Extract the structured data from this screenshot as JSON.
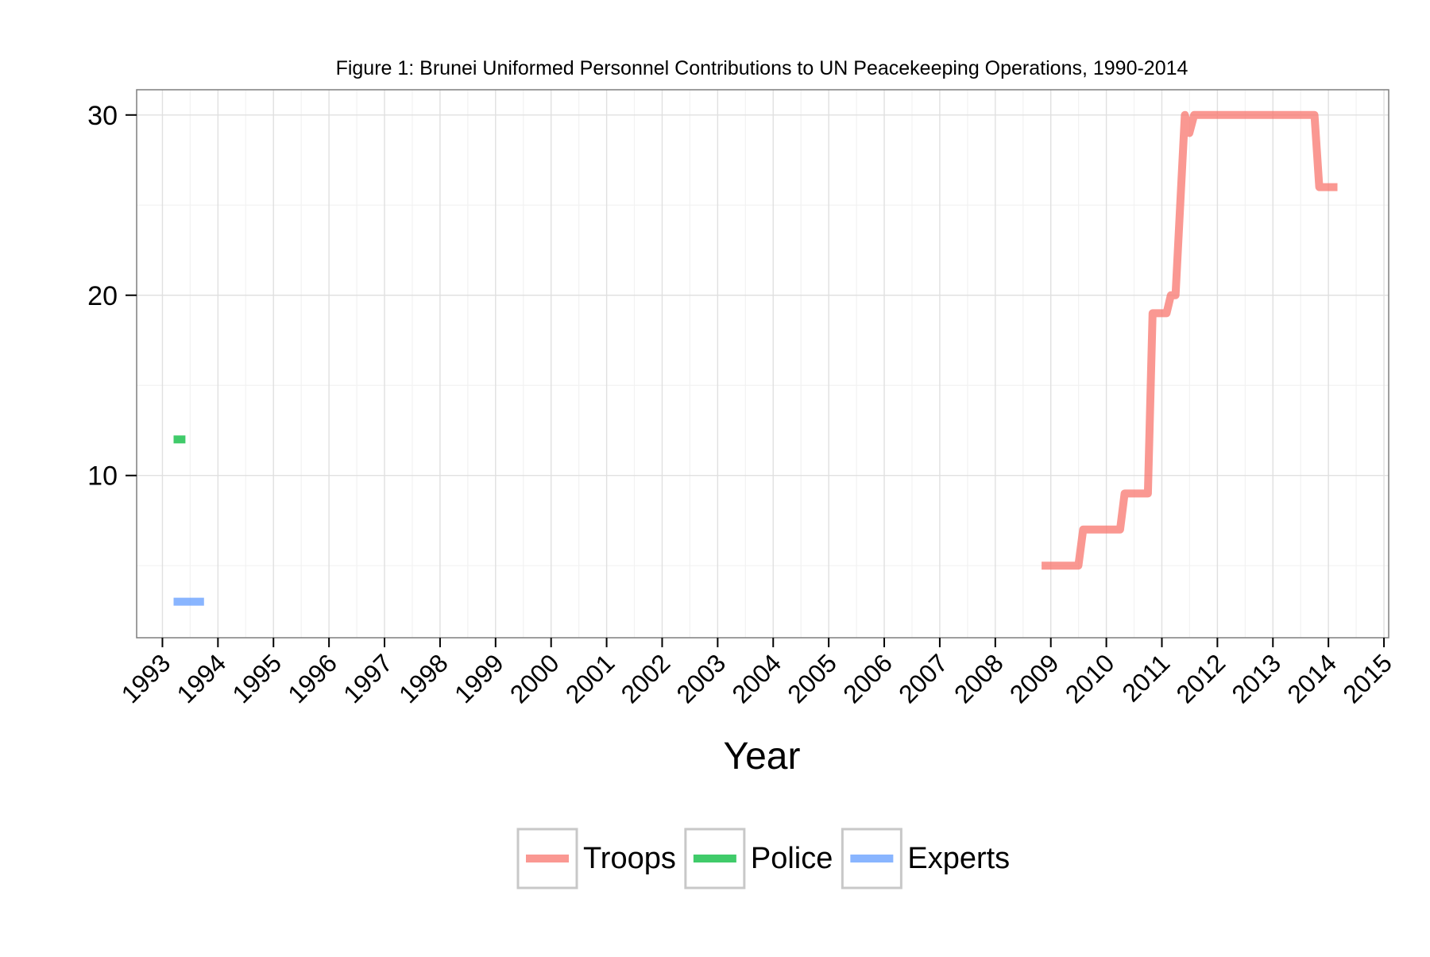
{
  "chart_data": {
    "type": "line",
    "title": "Figure 1: Brunei Uniformed Personnel Contributions to UN Peacekeeping Operations, 1990-2014",
    "xlabel": "Year",
    "ylabel": "",
    "x_ticks": [
      "1993",
      "1994",
      "1995",
      "1996",
      "1997",
      "1998",
      "1999",
      "2000",
      "2001",
      "2002",
      "2003",
      "2004",
      "2005",
      "2006",
      "2007",
      "2008",
      "2009",
      "2010",
      "2011",
      "2012",
      "2013",
      "2014",
      "2015"
    ],
    "y_ticks": [
      10,
      20,
      30
    ],
    "xlim": [
      "1992-07-15",
      "2015-02-01"
    ],
    "ylim": [
      1,
      31.4
    ],
    "grid": true,
    "legend_position": "bottom",
    "series": [
      {
        "name": "Troops",
        "color": "#F8766D",
        "points": [
          [
            "2008-11-01",
            5
          ],
          [
            "2009-01-01",
            5
          ],
          [
            "2009-03-01",
            5
          ],
          [
            "2009-05-01",
            5
          ],
          [
            "2009-07-01",
            5
          ],
          [
            "2009-08-01",
            7
          ],
          [
            "2009-10-01",
            7
          ],
          [
            "2010-01-01",
            7
          ],
          [
            "2010-04-01",
            7
          ],
          [
            "2010-05-01",
            9
          ],
          [
            "2010-07-01",
            9
          ],
          [
            "2010-10-01",
            9
          ],
          [
            "2010-11-01",
            19
          ],
          [
            "2011-01-01",
            19
          ],
          [
            "2011-02-01",
            19
          ],
          [
            "2011-03-01",
            20
          ],
          [
            "2011-04-01",
            20
          ],
          [
            "2011-06-01",
            30
          ],
          [
            "2011-07-01",
            29
          ],
          [
            "2011-08-01",
            30
          ],
          [
            "2011-10-01",
            30
          ],
          [
            "2012-01-01",
            30
          ],
          [
            "2012-06-01",
            30
          ],
          [
            "2013-01-01",
            30
          ],
          [
            "2013-06-01",
            30
          ],
          [
            "2013-10-01",
            30
          ],
          [
            "2013-11-01",
            26
          ],
          [
            "2014-01-01",
            26
          ],
          [
            "2014-03-01",
            26
          ]
        ]
      },
      {
        "name": "Police",
        "color": "#00BA38",
        "points": [
          [
            "1993-03-15",
            12
          ],
          [
            "1993-06-01",
            12
          ]
        ]
      },
      {
        "name": "Experts",
        "color": "#619CFF",
        "points": [
          [
            "1993-03-15",
            3
          ],
          [
            "1993-10-01",
            3
          ]
        ]
      }
    ]
  }
}
